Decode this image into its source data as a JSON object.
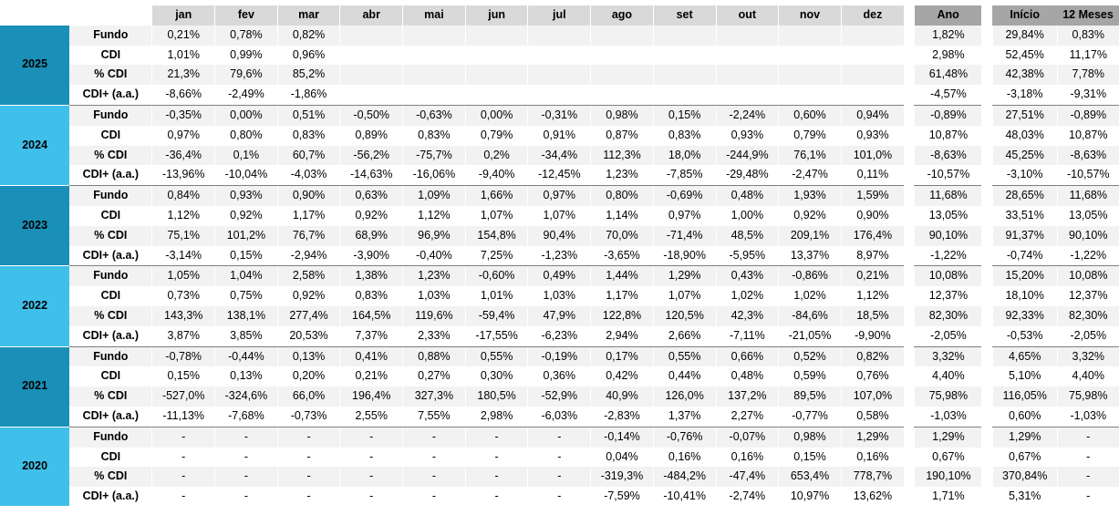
{
  "colors": {
    "year_dark": "#1a8fb7",
    "year_light": "#3fc0ea",
    "header_month": "#d9d9d9",
    "header_summary": "#a6a6a6",
    "row_shade": "#f2f2f2"
  },
  "headers": {
    "months": [
      "jan",
      "fev",
      "mar",
      "abr",
      "mai",
      "jun",
      "jul",
      "ago",
      "set",
      "out",
      "nov",
      "dez"
    ],
    "ano": "Ano",
    "inicio": "Início",
    "doze_meses": "12 Meses"
  },
  "years": [
    {
      "year": "2025",
      "style": "dark",
      "rows": [
        {
          "label": "Fundo",
          "months": [
            "0,21%",
            "0,78%",
            "0,82%",
            "",
            "",
            "",
            "",
            "",
            "",
            "",
            "",
            ""
          ],
          "ano": "1,82%",
          "inicio": "29,84%",
          "doze": "0,83%"
        },
        {
          "label": "CDI",
          "months": [
            "1,01%",
            "0,99%",
            "0,96%",
            "",
            "",
            "",
            "",
            "",
            "",
            "",
            "",
            ""
          ],
          "ano": "2,98%",
          "inicio": "52,45%",
          "doze": "11,17%"
        },
        {
          "label": "% CDI",
          "months": [
            "21,3%",
            "79,6%",
            "85,2%",
            "",
            "",
            "",
            "",
            "",
            "",
            "",
            "",
            ""
          ],
          "ano": "61,48%",
          "inicio": "42,38%",
          "doze": "7,78%"
        },
        {
          "label": "CDI+ (a.a.)",
          "months": [
            "-8,66%",
            "-2,49%",
            "-1,86%",
            "",
            "",
            "",
            "",
            "",
            "",
            "",
            "",
            ""
          ],
          "ano": "-4,57%",
          "inicio": "-3,18%",
          "doze": "-9,31%"
        }
      ]
    },
    {
      "year": "2024",
      "style": "light",
      "rows": [
        {
          "label": "Fundo",
          "months": [
            "-0,35%",
            "0,00%",
            "0,51%",
            "-0,50%",
            "-0,63%",
            "0,00%",
            "-0,31%",
            "0,98%",
            "0,15%",
            "-2,24%",
            "0,60%",
            "0,94%"
          ],
          "ano": "-0,89%",
          "inicio": "27,51%",
          "doze": "-0,89%"
        },
        {
          "label": "CDI",
          "months": [
            "0,97%",
            "0,80%",
            "0,83%",
            "0,89%",
            "0,83%",
            "0,79%",
            "0,91%",
            "0,87%",
            "0,83%",
            "0,93%",
            "0,79%",
            "0,93%"
          ],
          "ano": "10,87%",
          "inicio": "48,03%",
          "doze": "10,87%"
        },
        {
          "label": "% CDI",
          "months": [
            "-36,4%",
            "0,1%",
            "60,7%",
            "-56,2%",
            "-75,7%",
            "0,2%",
            "-34,4%",
            "112,3%",
            "18,0%",
            "-244,9%",
            "76,1%",
            "101,0%"
          ],
          "ano": "-8,63%",
          "inicio": "45,25%",
          "doze": "-8,63%"
        },
        {
          "label": "CDI+ (a.a.)",
          "months": [
            "-13,96%",
            "-10,04%",
            "-4,03%",
            "-14,63%",
            "-16,06%",
            "-9,40%",
            "-12,45%",
            "1,23%",
            "-7,85%",
            "-29,48%",
            "-2,47%",
            "0,11%"
          ],
          "ano": "-10,57%",
          "inicio": "-3,10%",
          "doze": "-10,57%"
        }
      ]
    },
    {
      "year": "2023",
      "style": "dark",
      "rows": [
        {
          "label": "Fundo",
          "months": [
            "0,84%",
            "0,93%",
            "0,90%",
            "0,63%",
            "1,09%",
            "1,66%",
            "0,97%",
            "0,80%",
            "-0,69%",
            "0,48%",
            "1,93%",
            "1,59%"
          ],
          "ano": "11,68%",
          "inicio": "28,65%",
          "doze": "11,68%"
        },
        {
          "label": "CDI",
          "months": [
            "1,12%",
            "0,92%",
            "1,17%",
            "0,92%",
            "1,12%",
            "1,07%",
            "1,07%",
            "1,14%",
            "0,97%",
            "1,00%",
            "0,92%",
            "0,90%"
          ],
          "ano": "13,05%",
          "inicio": "33,51%",
          "doze": "13,05%"
        },
        {
          "label": "% CDI",
          "months": [
            "75,1%",
            "101,2%",
            "76,7%",
            "68,9%",
            "96,9%",
            "154,8%",
            "90,4%",
            "70,0%",
            "-71,4%",
            "48,5%",
            "209,1%",
            "176,4%"
          ],
          "ano": "90,10%",
          "inicio": "91,37%",
          "doze": "90,10%"
        },
        {
          "label": "CDI+ (a.a.)",
          "months": [
            "-3,14%",
            "0,15%",
            "-2,94%",
            "-3,90%",
            "-0,40%",
            "7,25%",
            "-1,23%",
            "-3,65%",
            "-18,90%",
            "-5,95%",
            "13,37%",
            "8,97%"
          ],
          "ano": "-1,22%",
          "inicio": "-0,74%",
          "doze": "-1,22%"
        }
      ]
    },
    {
      "year": "2022",
      "style": "light",
      "rows": [
        {
          "label": "Fundo",
          "months": [
            "1,05%",
            "1,04%",
            "2,58%",
            "1,38%",
            "1,23%",
            "-0,60%",
            "0,49%",
            "1,44%",
            "1,29%",
            "0,43%",
            "-0,86%",
            "0,21%"
          ],
          "ano": "10,08%",
          "inicio": "15,20%",
          "doze": "10,08%"
        },
        {
          "label": "CDI",
          "months": [
            "0,73%",
            "0,75%",
            "0,92%",
            "0,83%",
            "1,03%",
            "1,01%",
            "1,03%",
            "1,17%",
            "1,07%",
            "1,02%",
            "1,02%",
            "1,12%"
          ],
          "ano": "12,37%",
          "inicio": "18,10%",
          "doze": "12,37%"
        },
        {
          "label": "% CDI",
          "months": [
            "143,3%",
            "138,1%",
            "277,4%",
            "164,5%",
            "119,6%",
            "-59,4%",
            "47,9%",
            "122,8%",
            "120,5%",
            "42,3%",
            "-84,6%",
            "18,5%"
          ],
          "ano": "82,30%",
          "inicio": "92,33%",
          "doze": "82,30%"
        },
        {
          "label": "CDI+ (a.a.)",
          "months": [
            "3,87%",
            "3,85%",
            "20,53%",
            "7,37%",
            "2,33%",
            "-17,55%",
            "-6,23%",
            "2,94%",
            "2,66%",
            "-7,11%",
            "-21,05%",
            "-9,90%"
          ],
          "ano": "-2,05%",
          "inicio": "-0,53%",
          "doze": "-2,05%"
        }
      ]
    },
    {
      "year": "2021",
      "style": "dark",
      "rows": [
        {
          "label": "Fundo",
          "months": [
            "-0,78%",
            "-0,44%",
            "0,13%",
            "0,41%",
            "0,88%",
            "0,55%",
            "-0,19%",
            "0,17%",
            "0,55%",
            "0,66%",
            "0,52%",
            "0,82%"
          ],
          "ano": "3,32%",
          "inicio": "4,65%",
          "doze": "3,32%"
        },
        {
          "label": "CDI",
          "months": [
            "0,15%",
            "0,13%",
            "0,20%",
            "0,21%",
            "0,27%",
            "0,30%",
            "0,36%",
            "0,42%",
            "0,44%",
            "0,48%",
            "0,59%",
            "0,76%"
          ],
          "ano": "4,40%",
          "inicio": "5,10%",
          "doze": "4,40%"
        },
        {
          "label": "% CDI",
          "months": [
            "-527,0%",
            "-324,6%",
            "66,0%",
            "196,4%",
            "327,3%",
            "180,5%",
            "-52,9%",
            "40,9%",
            "126,0%",
            "137,2%",
            "89,5%",
            "107,0%"
          ],
          "ano": "75,98%",
          "inicio": "116,05%",
          "doze": "75,98%"
        },
        {
          "label": "CDI+ (a.a.)",
          "months": [
            "-11,13%",
            "-7,68%",
            "-0,73%",
            "2,55%",
            "7,55%",
            "2,98%",
            "-6,03%",
            "-2,83%",
            "1,37%",
            "2,27%",
            "-0,77%",
            "0,58%"
          ],
          "ano": "-1,03%",
          "inicio": "0,60%",
          "doze": "-1,03%"
        }
      ]
    },
    {
      "year": "2020",
      "style": "light",
      "rows": [
        {
          "label": "Fundo",
          "months": [
            "-",
            "-",
            "-",
            "-",
            "-",
            "-",
            "-",
            "-0,14%",
            "-0,76%",
            "-0,07%",
            "0,98%",
            "1,29%"
          ],
          "ano": "1,29%",
          "inicio": "1,29%",
          "doze": "-"
        },
        {
          "label": "CDI",
          "months": [
            "-",
            "-",
            "-",
            "-",
            "-",
            "-",
            "-",
            "0,04%",
            "0,16%",
            "0,16%",
            "0,15%",
            "0,16%"
          ],
          "ano": "0,67%",
          "inicio": "0,67%",
          "doze": "-"
        },
        {
          "label": "% CDI",
          "months": [
            "-",
            "-",
            "-",
            "-",
            "-",
            "-",
            "-",
            "-319,3%",
            "-484,2%",
            "-47,4%",
            "653,4%",
            "778,7%"
          ],
          "ano": "190,10%",
          "inicio": "370,84%",
          "doze": "-"
        },
        {
          "label": "CDI+ (a.a.)",
          "months": [
            "-",
            "-",
            "-",
            "-",
            "-",
            "-",
            "-",
            "-7,59%",
            "-10,41%",
            "-2,74%",
            "10,97%",
            "13,62%"
          ],
          "ano": "1,71%",
          "inicio": "5,31%",
          "doze": "-"
        }
      ]
    }
  ]
}
